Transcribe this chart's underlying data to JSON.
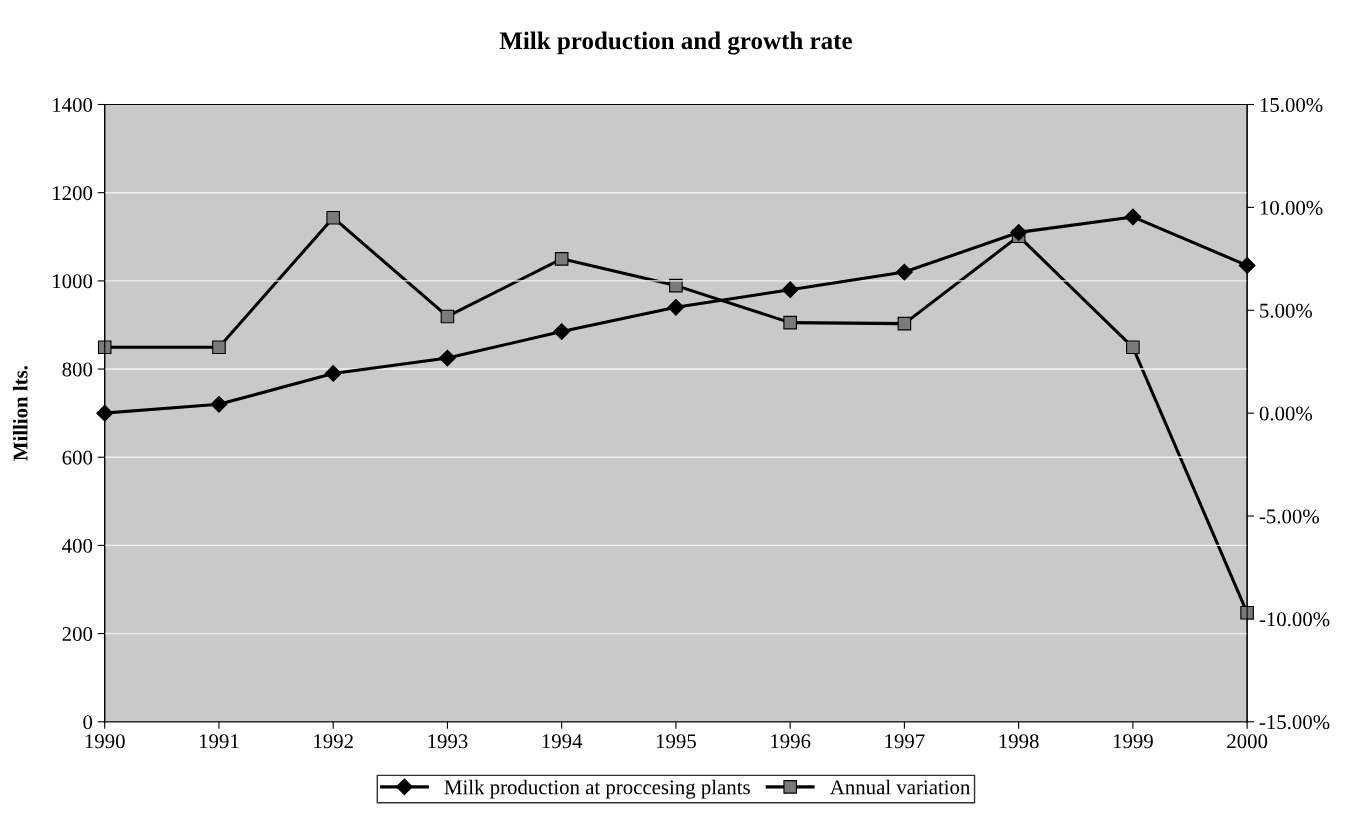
{
  "chart_data": {
    "type": "line",
    "title": "Milk production and growth rate",
    "ylabel": "Million lts.",
    "x": [
      1990,
      1991,
      1992,
      1993,
      1994,
      1995,
      1996,
      1997,
      1998,
      1999,
      2000
    ],
    "xlim": [
      1990,
      2000
    ],
    "xticks": [
      1990,
      1991,
      1992,
      1993,
      1994,
      1995,
      1996,
      1997,
      1998,
      1999,
      2000
    ],
    "ylim": [
      0,
      1400
    ],
    "yticks": [
      0,
      200,
      400,
      600,
      800,
      1000,
      1200,
      1400
    ],
    "y2lim": [
      -15,
      15
    ],
    "y2ticks": [
      {
        "value": -15,
        "label": "-15.00%"
      },
      {
        "value": -10,
        "label": "-10.00%"
      },
      {
        "value": -5,
        "label": "-5.00%"
      },
      {
        "value": 0,
        "label": "0.00%"
      },
      {
        "value": 5,
        "label": "5.00%"
      },
      {
        "value": 10,
        "label": "10.00%"
      },
      {
        "value": 15,
        "label": "15.00%"
      }
    ],
    "grid": "y",
    "legend": "bottom",
    "line_style": "solid",
    "series": [
      {
        "name": "Milk production at proccesing plants",
        "color": "#000000",
        "marker": "diamond",
        "values": [
          700,
          720,
          790,
          825,
          885,
          940,
          980,
          1020,
          1110,
          1145,
          1035
        ]
      },
      {
        "name": "Annual variation",
        "color": "#7a7a7a",
        "marker": "square",
        "axis": "y2",
        "values": [
          3.2,
          3.2,
          9.5,
          4.7,
          7.5,
          6.2,
          4.4,
          4.35,
          8.6,
          3.2,
          -9.7
        ]
      }
    ]
  }
}
